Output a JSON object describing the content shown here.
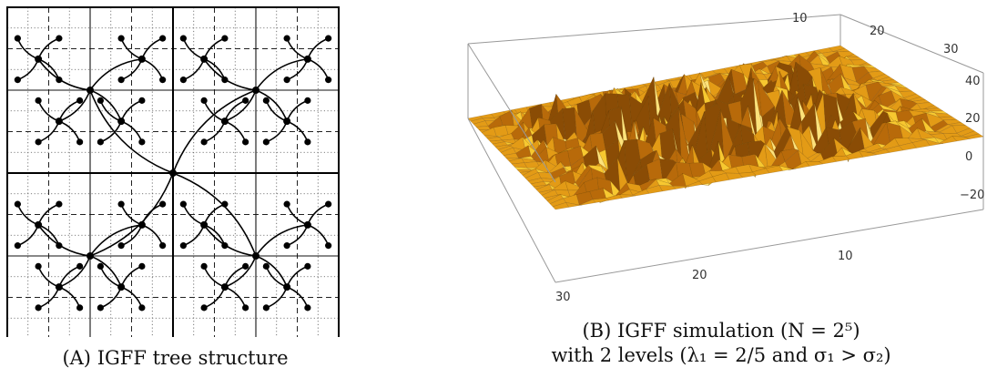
{
  "figure": {
    "panel_a": {
      "caption_label": "(A)",
      "caption_text": "IGFF tree structure"
    },
    "panel_b": {
      "caption_label": "(B)",
      "caption_line1": "IGFF simulation (N = 2⁵)",
      "caption_line2": "with 2 levels (λ₁ = 2/5 and σ₁ > σ₂)",
      "axis_top_ticks": [
        "10",
        "20",
        "30"
      ],
      "axis_bottom_ticks": [
        "10",
        "20",
        "30"
      ],
      "axis_z_ticks": [
        "40",
        "20",
        "0",
        "−20"
      ],
      "surface_colors": [
        "#f7c830",
        "#e39b16",
        "#b86a0a",
        "#fde27a",
        "#8a4c05"
      ]
    }
  }
}
